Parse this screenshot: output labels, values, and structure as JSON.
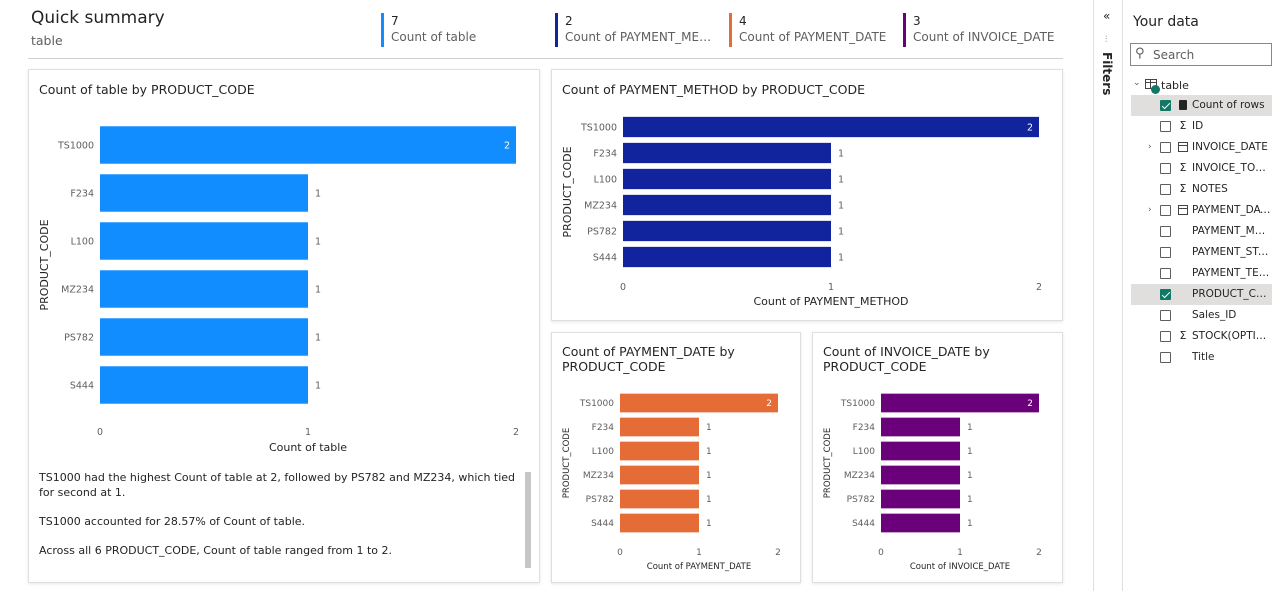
{
  "header": {
    "title": "Quick summary",
    "subtitle": "table",
    "kpis": [
      {
        "value": "7",
        "label": "Count of table",
        "color": "#118DFF"
      },
      {
        "value": "2",
        "label": "Count of PAYMENT_MET...",
        "color": "#12239E"
      },
      {
        "value": "4",
        "label": "Count of PAYMENT_DATE",
        "color": "#E66C37"
      },
      {
        "value": "3",
        "label": "Count of INVOICE_DATE",
        "color": "#6B007B"
      }
    ]
  },
  "chart_data": [
    {
      "type": "bar",
      "orientation": "horizontal",
      "title": "Count of table by PRODUCT_CODE",
      "categories": [
        "TS1000",
        "F234",
        "L100",
        "MZ234",
        "PS782",
        "S444"
      ],
      "values": [
        2,
        1,
        1,
        1,
        1,
        1
      ],
      "xlabel": "Count of table",
      "ylabel": "PRODUCT_CODE",
      "xlim": [
        0,
        2
      ],
      "ticks": [
        "0",
        "1",
        "2"
      ],
      "color": "#118DFF",
      "grid": false
    },
    {
      "type": "bar",
      "orientation": "horizontal",
      "title": "Count of PAYMENT_METHOD by PRODUCT_CODE",
      "categories": [
        "TS1000",
        "F234",
        "L100",
        "MZ234",
        "PS782",
        "S444"
      ],
      "values": [
        2,
        1,
        1,
        1,
        1,
        1
      ],
      "xlabel": "Count of PAYMENT_METHOD",
      "ylabel": "PRODUCT_CODE",
      "xlim": [
        0,
        2
      ],
      "ticks": [
        "0",
        "1",
        "2"
      ],
      "color": "#12239E",
      "grid": false
    },
    {
      "type": "bar",
      "orientation": "horizontal",
      "title": "Count of PAYMENT_DATE by PRODUCT_CODE",
      "categories": [
        "TS1000",
        "F234",
        "L100",
        "MZ234",
        "PS782",
        "S444"
      ],
      "values": [
        2,
        1,
        1,
        1,
        1,
        1
      ],
      "xlabel": "Count of PAYMENT_DATE",
      "ylabel": "PRODUCT_CODE",
      "xlim": [
        0,
        2
      ],
      "ticks": [
        "0",
        "1",
        "2"
      ],
      "color": "#E66C37",
      "grid": false
    },
    {
      "type": "bar",
      "orientation": "horizontal",
      "title": "Count of INVOICE_DATE by PRODUCT_CODE",
      "categories": [
        "TS1000",
        "F234",
        "L100",
        "MZ234",
        "PS782",
        "S444"
      ],
      "values": [
        2,
        1,
        1,
        1,
        1,
        1
      ],
      "xlabel": "Count of INVOICE_DATE",
      "ylabel": "PRODUCT_CODE",
      "xlim": [
        0,
        2
      ],
      "ticks": [
        "0",
        "1",
        "2"
      ],
      "color": "#6B007B",
      "grid": false
    }
  ],
  "insights": [
    "TS1000 had the highest Count of table at 2, followed by PS782 and MZ234, which tied for second at 1.",
    "TS1000 accounted for 28.57% of Count of table.",
    "Across all 6 PRODUCT_CODE, Count of table ranged from 1 to 2."
  ],
  "filters": {
    "collapse_icon": "«",
    "label": "Filters"
  },
  "data_pane": {
    "title": "Your data",
    "search_placeholder": "Search",
    "table_name": "table",
    "fields": [
      {
        "name": "Count of rows",
        "icon": "calculator-icon",
        "checked": true,
        "selected": true,
        "expandable": false
      },
      {
        "name": "ID",
        "icon": "sigma-icon",
        "checked": false,
        "selected": false,
        "expandable": false
      },
      {
        "name": "INVOICE_DATE",
        "icon": "calendar-icon",
        "checked": false,
        "selected": false,
        "expandable": true
      },
      {
        "name": "INVOICE_TOTAL",
        "icon": "sigma-icon",
        "checked": false,
        "selected": false,
        "expandable": false
      },
      {
        "name": "NOTES",
        "icon": "sigma-icon",
        "checked": false,
        "selected": false,
        "expandable": false
      },
      {
        "name": "PAYMENT_DATE",
        "icon": "calendar-icon",
        "checked": false,
        "selected": false,
        "expandable": true
      },
      {
        "name": "PAYMENT_MET...",
        "icon": "",
        "checked": false,
        "selected": false,
        "expandable": false
      },
      {
        "name": "PAYMENT_STAT...",
        "icon": "",
        "checked": false,
        "selected": false,
        "expandable": false
      },
      {
        "name": "PAYMENT_TER...",
        "icon": "",
        "checked": false,
        "selected": false,
        "expandable": false
      },
      {
        "name": "PRODUCT_CODE",
        "icon": "",
        "checked": true,
        "selected": true,
        "expandable": false
      },
      {
        "name": "Sales_ID",
        "icon": "",
        "checked": false,
        "selected": false,
        "expandable": false
      },
      {
        "name": "STOCK(OPTIM...",
        "icon": "sigma-icon",
        "checked": false,
        "selected": false,
        "expandable": false
      },
      {
        "name": "Title",
        "icon": "",
        "checked": false,
        "selected": false,
        "expandable": false
      }
    ]
  }
}
